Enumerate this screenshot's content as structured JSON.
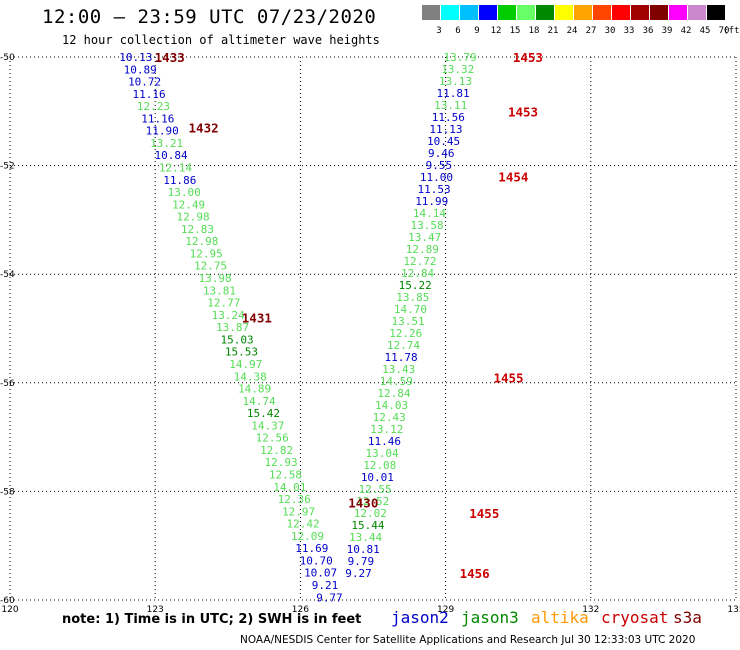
{
  "title": "12:00 – 23:59 UTC 07/23/2020",
  "subtitle": "12 hour collection of altimeter wave heights",
  "scale": {
    "unit": "(ft)",
    "colors": [
      "#808080",
      "#00ffff",
      "#00bfff",
      "#0000ff",
      "#00cc00",
      "#66ff66",
      "#008800",
      "#ffff00",
      "#ffa500",
      "#ff4500",
      "#ff0000",
      "#a00000",
      "#800000",
      "#ff00ff",
      "#cc88cc",
      "#000000"
    ],
    "labels": [
      "3",
      "6",
      "9",
      "12",
      "15",
      "18",
      "21",
      "24",
      "27",
      "30",
      "33",
      "36",
      "39",
      "42",
      "45",
      "70"
    ]
  },
  "axes": {
    "x_ticks": [
      "120",
      "123",
      "126",
      "129",
      "132",
      "135"
    ],
    "y_ticks": [
      "-50",
      "-52",
      "-54",
      "-56",
      "-58",
      "-60"
    ]
  },
  "chart_data": {
    "type": "scatter",
    "xlim": [
      120,
      135
    ],
    "ylim": [
      -60,
      -50
    ],
    "grid": true,
    "colors": {
      "jason2": "#0000cc",
      "jason3_light": "#55dd55",
      "jason3_dark": "#008800",
      "altika": "#ff9900",
      "cryosat": "#cc0000",
      "s3a": "#800000"
    },
    "track_a": [
      {
        "v": "10.13",
        "c": "jason2"
      },
      {
        "v": "10.89",
        "c": "jason2"
      },
      {
        "v": "10.72",
        "c": "jason2"
      },
      {
        "v": "11.16",
        "c": "jason2"
      },
      {
        "v": "12.23",
        "c": "jason3_light"
      },
      {
        "v": "11.16",
        "c": "jason2"
      },
      {
        "v": "11.90",
        "c": "jason2"
      },
      {
        "v": "13.21",
        "c": "jason3_light"
      },
      {
        "v": "10.84",
        "c": "jason2"
      },
      {
        "v": "12.14",
        "c": "jason3_light"
      },
      {
        "v": "11.86",
        "c": "jason2"
      },
      {
        "v": "13.00",
        "c": "jason3_light"
      },
      {
        "v": "12.49",
        "c": "jason3_light"
      },
      {
        "v": "12.98",
        "c": "jason3_light"
      },
      {
        "v": "12.83",
        "c": "jason3_light"
      },
      {
        "v": "12.98",
        "c": "jason3_light"
      },
      {
        "v": "12.95",
        "c": "jason3_light"
      },
      {
        "v": "12.75",
        "c": "jason3_light"
      },
      {
        "v": "13.98",
        "c": "jason3_light"
      },
      {
        "v": "13.81",
        "c": "jason3_light"
      },
      {
        "v": "12.77",
        "c": "jason3_light"
      },
      {
        "v": "13.24",
        "c": "jason3_light"
      },
      {
        "v": "13.87",
        "c": "jason3_light"
      },
      {
        "v": "15.03",
        "c": "jason3_dark"
      },
      {
        "v": "15.53",
        "c": "jason3_dark"
      },
      {
        "v": "14.97",
        "c": "jason3_light"
      },
      {
        "v": "14.38",
        "c": "jason3_light"
      },
      {
        "v": "14.89",
        "c": "jason3_light"
      },
      {
        "v": "14.74",
        "c": "jason3_light"
      },
      {
        "v": "15.42",
        "c": "jason3_dark"
      },
      {
        "v": "14.37",
        "c": "jason3_light"
      },
      {
        "v": "12.56",
        "c": "jason3_light"
      },
      {
        "v": "12.82",
        "c": "jason3_light"
      },
      {
        "v": "12.93",
        "c": "jason3_light"
      },
      {
        "v": "12.58",
        "c": "jason3_light"
      },
      {
        "v": "14.01",
        "c": "jason3_light"
      },
      {
        "v": "12.36",
        "c": "jason3_light"
      },
      {
        "v": "12.97",
        "c": "jason3_light"
      },
      {
        "v": "12.42",
        "c": "jason3_light"
      },
      {
        "v": "12.09",
        "c": "jason3_light"
      },
      {
        "v": "11.69",
        "c": "jason2"
      },
      {
        "v": "10.70",
        "c": "jason2"
      },
      {
        "v": "10.07",
        "c": "jason2"
      },
      {
        "v": "9.21",
        "c": "jason2"
      },
      {
        "v": "9.77",
        "c": "jason2"
      }
    ],
    "track_b": [
      {
        "v": "13.79",
        "c": "jason3_light"
      },
      {
        "v": "13.32",
        "c": "jason3_light"
      },
      {
        "v": "13.13",
        "c": "jason3_light"
      },
      {
        "v": "11.81",
        "c": "jason2"
      },
      {
        "v": "13.11",
        "c": "jason3_light"
      },
      {
        "v": "11.56",
        "c": "jason2"
      },
      {
        "v": "11.13",
        "c": "jason2"
      },
      {
        "v": "10.45",
        "c": "jason2"
      },
      {
        "v": "9.46",
        "c": "jason2"
      },
      {
        "v": "9.55",
        "c": "jason2"
      },
      {
        "v": "11.00",
        "c": "jason2"
      },
      {
        "v": "11.53",
        "c": "jason2"
      },
      {
        "v": "11.99",
        "c": "jason2"
      },
      {
        "v": "14.14",
        "c": "jason3_light"
      },
      {
        "v": "13.58",
        "c": "jason3_light"
      },
      {
        "v": "13.47",
        "c": "jason3_light"
      },
      {
        "v": "12.89",
        "c": "jason3_light"
      },
      {
        "v": "12.72",
        "c": "jason3_light"
      },
      {
        "v": "12.84",
        "c": "jason3_light"
      },
      {
        "v": "15.22",
        "c": "jason3_dark"
      },
      {
        "v": "13.85",
        "c": "jason3_light"
      },
      {
        "v": "14.70",
        "c": "jason3_light"
      },
      {
        "v": "13.51",
        "c": "jason3_light"
      },
      {
        "v": "12.26",
        "c": "jason3_light"
      },
      {
        "v": "12.74",
        "c": "jason3_light"
      },
      {
        "v": "11.78",
        "c": "jason2"
      },
      {
        "v": "13.43",
        "c": "jason3_light"
      },
      {
        "v": "14.59",
        "c": "jason3_light"
      },
      {
        "v": "12.84",
        "c": "jason3_light"
      },
      {
        "v": "14.03",
        "c": "jason3_light"
      },
      {
        "v": "12.43",
        "c": "jason3_light"
      },
      {
        "v": "13.12",
        "c": "jason3_light"
      },
      {
        "v": "11.46",
        "c": "jason2"
      },
      {
        "v": "13.04",
        "c": "jason3_light"
      },
      {
        "v": "12.08",
        "c": "jason3_light"
      },
      {
        "v": "10.01",
        "c": "jason2"
      },
      {
        "v": "12.55",
        "c": "jason3_light"
      },
      {
        "v": "12.52",
        "c": "jason3_light"
      },
      {
        "v": "12.02",
        "c": "jason3_light"
      },
      {
        "v": "15.44",
        "c": "jason3_dark"
      },
      {
        "v": "13.44",
        "c": "jason3_light"
      },
      {
        "v": "10.81",
        "c": "jason2"
      },
      {
        "v": "9.79",
        "c": "jason2"
      },
      {
        "v": "9.27",
        "c": "jason2"
      }
    ],
    "pass_labels_left": [
      {
        "v": "1433",
        "c": "s3a"
      },
      {
        "v": "1432",
        "c": "s3a"
      },
      {
        "v": "1431",
        "c": "s3a"
      },
      {
        "v": "1430",
        "c": "s3a"
      }
    ],
    "pass_labels_right": [
      {
        "v": "1453",
        "c": "cryosat"
      },
      {
        "v": "1453",
        "c": "cryosat"
      },
      {
        "v": "1454",
        "c": "cryosat"
      },
      {
        "v": "1455",
        "c": "cryosat"
      },
      {
        "v": "1455",
        "c": "cryosat"
      },
      {
        "v": "1456",
        "c": "cryosat"
      }
    ]
  },
  "note": "note: 1) Time is in UTC; 2) SWH is in feet",
  "legend": [
    {
      "label": "jason2",
      "color": "#0000cc"
    },
    {
      "label": "jason3",
      "color": "#008800"
    },
    {
      "label": "altika",
      "color": "#ff9900"
    },
    {
      "label": "cryosat",
      "color": "#cc0000"
    },
    {
      "label": "s3a",
      "color": "#800000"
    }
  ],
  "footer": "NOAA/NESDIS Center for Satellite Applications and Research   Jul 30 12:33:03 UTC 2020"
}
